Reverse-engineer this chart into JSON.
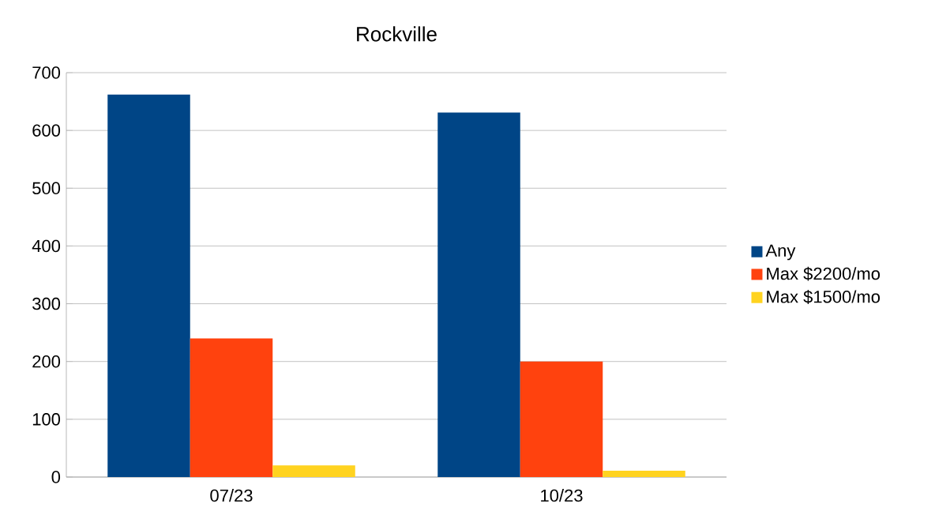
{
  "chart_data": {
    "type": "bar",
    "title": "Rockville",
    "categories": [
      "07/23",
      "10/23"
    ],
    "series": [
      {
        "name": "Any",
        "color": "#004586",
        "values": [
          662,
          631
        ]
      },
      {
        "name": "Max $2200/mo",
        "color": "#ff420e",
        "values": [
          240,
          200
        ]
      },
      {
        "name": "Max $1500/mo",
        "color": "#ffd320",
        "values": [
          20,
          11
        ]
      }
    ],
    "ylim": [
      0,
      700
    ],
    "yticks": [
      0,
      100,
      200,
      300,
      400,
      500,
      600,
      700
    ],
    "grid": "y",
    "legend": "right"
  }
}
